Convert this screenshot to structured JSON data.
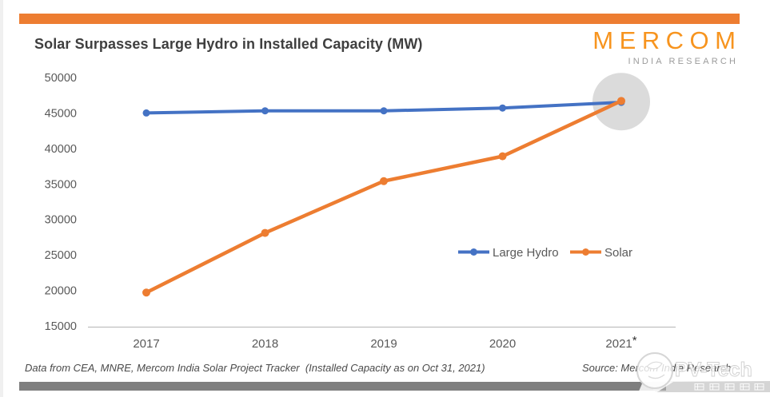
{
  "header": {
    "title": "Solar Surpasses Large Hydro in Installed Capacity (MW)",
    "logo_brand": "MERCOM",
    "logo_sub": "INDIA RESEARCH"
  },
  "colors": {
    "accent_orange": "#ED7D31",
    "logo_orange": "#F7941E",
    "line_blue": "#4472C4",
    "line_orange": "#ED7D31",
    "axis_text": "#595959",
    "title_text": "#3F3F3F",
    "bottom_bar_gray": "#7F7F7F",
    "highlight_circle": "#DBDBDB"
  },
  "chart_data": {
    "type": "line",
    "title": "Solar Surpasses Large Hydro in Installed Capacity (MW)",
    "categories": [
      "2017",
      "2018",
      "2019",
      "2020",
      "2021*"
    ],
    "series": [
      {
        "name": "Large Hydro",
        "color": "#4472C4",
        "values": [
          45000,
          45300,
          45300,
          45700,
          46500
        ]
      },
      {
        "name": "Solar",
        "color": "#ED7D31",
        "values": [
          19700,
          28100,
          35400,
          38900,
          46700
        ]
      }
    ],
    "ylim": [
      15000,
      50000
    ],
    "yticks": [
      15000,
      20000,
      25000,
      30000,
      35000,
      40000,
      45000,
      50000
    ],
    "grid": false,
    "legend_position": "center-right",
    "annotation": "gray highlight circle where Solar overtakes Large Hydro at 2021*"
  },
  "footer": {
    "left": "Data from CEA, MNRE, Mercom India Solar Project Tracker  (Installed Capacity as on Oct 31, 2021)",
    "right": "Source: Mercom India Research"
  },
  "watermark": {
    "text": "PV-Tech"
  }
}
